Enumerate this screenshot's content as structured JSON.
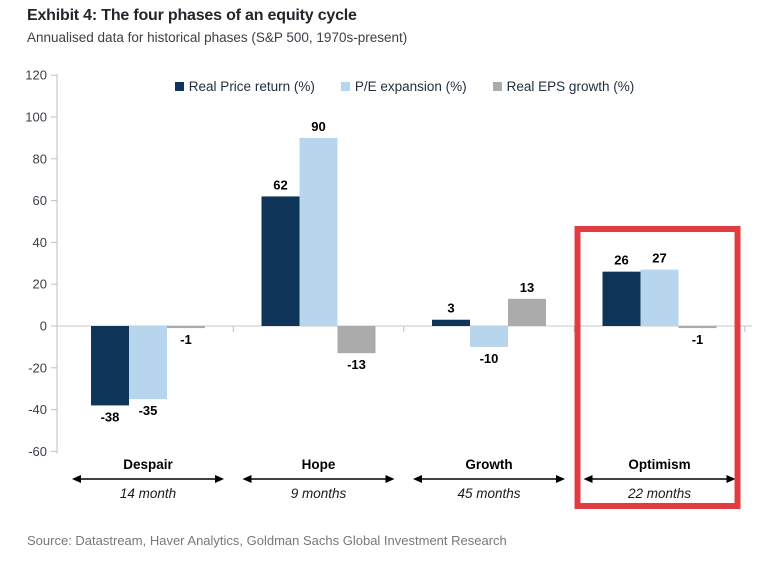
{
  "header": {
    "title": "Exhibit 4: The four phases of an equity cycle",
    "subtitle": "Annualised data for historical phases (S&P 500, 1970s-present)"
  },
  "footer": {
    "source": "Source: Datastream, Haver Analytics, Goldman Sachs Global Investment Research"
  },
  "chart_data": {
    "type": "bar",
    "title": "Exhibit 4: The four phases of an equity cycle",
    "subtitle": "Annualised data for historical phases (S&P 500, 1970s-present)",
    "categories": [
      "Despair",
      "Hope",
      "Growth",
      "Optimism"
    ],
    "durations": [
      "14 month",
      "9 months",
      "45 months",
      "22 months"
    ],
    "series": [
      {
        "name": "Real Price return (%)",
        "color": "#0e3557",
        "values": [
          -38,
          62,
          3,
          26
        ]
      },
      {
        "name": "P/E expansion (%)",
        "color": "#b7d6ee",
        "values": [
          -35,
          90,
          -10,
          27
        ]
      },
      {
        "name": "Real EPS growth (%)",
        "color": "#ababab",
        "values": [
          -1,
          -13,
          13,
          -1
        ]
      }
    ],
    "ylim": [
      -60,
      120
    ],
    "ytick_step": 20,
    "grid": "zero-line-only",
    "legend_position": "top-center",
    "highlight": {
      "category": "Optimism",
      "color": "#e23c41"
    },
    "colors": {
      "axis_line": "#bfbfbf",
      "zero_line": "#c8c8c8",
      "value_label": "#000000",
      "axis_label": "#3a3f47",
      "arrow": "#000000"
    }
  }
}
